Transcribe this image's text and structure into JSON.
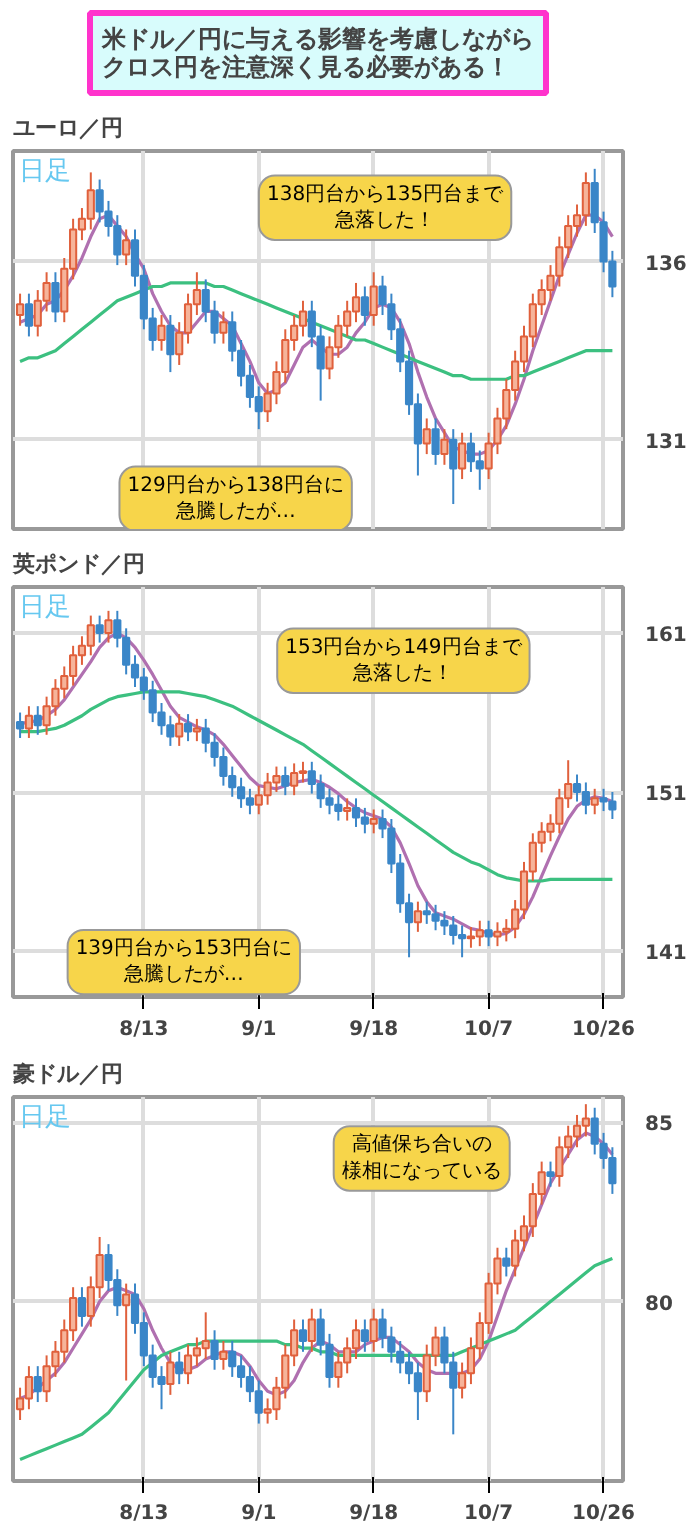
{
  "chart_data": [
    {
      "type": "candlestick",
      "title": "米ドル／円に与える影響を考慮しながらクロス円を注意深く見る必要がある！",
      "subtitle": "ユーロ／円",
      "categories": [
        null,
        null,
        null,
        null,
        null,
        null,
        null,
        null,
        null,
        null,
        null,
        null,
        null,
        null,
        null,
        null,
        null,
        null,
        null,
        null,
        null,
        null,
        null,
        null,
        null,
        null,
        null,
        null,
        null,
        null,
        null,
        null,
        null,
        null,
        null,
        null,
        null,
        null,
        null,
        null,
        null,
        null,
        null,
        null,
        null,
        null,
        null,
        null,
        null,
        null,
        null,
        null,
        null,
        null,
        null,
        null,
        null,
        null,
        null,
        null,
        null,
        null,
        null,
        null,
        null,
        null,
        null,
        null
      ],
      "ohlc": [
        [
          134.5,
          135.1,
          134.2,
          134.8
        ],
        [
          134.8,
          135.1,
          133.9,
          134.2
        ],
        [
          134.2,
          135.2,
          133.9,
          134.9
        ],
        [
          134.9,
          135.7,
          134.6,
          135.4
        ],
        [
          135.4,
          135.7,
          134.3,
          134.6
        ],
        [
          134.6,
          136.1,
          134.3,
          135.8
        ],
        [
          135.8,
          137.2,
          135.5,
          136.9
        ],
        [
          136.9,
          137.5,
          136.6,
          137.2
        ],
        [
          137.2,
          138.5,
          136.9,
          138.0
        ],
        [
          138.0,
          138.3,
          137.1,
          137.4
        ],
        [
          137.4,
          137.7,
          136.7,
          137.0
        ],
        [
          137.0,
          137.3,
          135.9,
          136.2
        ],
        [
          136.2,
          136.9,
          135.9,
          136.6
        ],
        [
          136.6,
          136.9,
          135.3,
          135.6
        ],
        [
          135.6,
          135.9,
          134.1,
          134.4
        ],
        [
          134.4,
          134.7,
          133.5,
          133.8
        ],
        [
          133.8,
          134.5,
          133.5,
          134.2
        ],
        [
          134.2,
          134.5,
          132.9,
          133.4
        ],
        [
          133.4,
          134.3,
          133.1,
          134.0
        ],
        [
          134.0,
          135.1,
          133.7,
          134.8
        ],
        [
          134.8,
          135.7,
          134.5,
          135.2
        ],
        [
          135.2,
          135.5,
          134.3,
          134.6
        ],
        [
          134.6,
          134.9,
          133.7,
          134.0
        ],
        [
          134.0,
          134.6,
          133.7,
          134.3
        ],
        [
          134.3,
          134.6,
          133.2,
          133.5
        ],
        [
          133.5,
          133.8,
          132.5,
          132.8
        ],
        [
          132.8,
          133.1,
          131.9,
          132.2
        ],
        [
          132.2,
          132.5,
          131.3,
          131.8
        ],
        [
          131.8,
          132.6,
          131.5,
          132.3
        ],
        [
          132.3,
          133.2,
          132.0,
          132.9
        ],
        [
          132.9,
          134.1,
          132.6,
          133.8
        ],
        [
          133.8,
          134.5,
          133.5,
          134.2
        ],
        [
          134.2,
          134.9,
          133.9,
          134.6
        ],
        [
          134.6,
          134.9,
          133.6,
          133.9
        ],
        [
          133.9,
          134.2,
          132.1,
          133.0
        ],
        [
          133.0,
          133.9,
          132.7,
          133.6
        ],
        [
          133.6,
          134.5,
          133.3,
          134.2
        ],
        [
          134.2,
          134.9,
          133.9,
          134.6
        ],
        [
          134.6,
          135.4,
          134.3,
          135.0
        ],
        [
          135.0,
          135.3,
          134.2,
          134.5
        ],
        [
          134.5,
          135.7,
          134.2,
          135.3
        ],
        [
          135.3,
          135.6,
          134.5,
          134.8
        ],
        [
          134.8,
          135.1,
          133.8,
          134.1
        ],
        [
          134.1,
          134.4,
          132.9,
          133.2
        ],
        [
          133.2,
          133.5,
          131.7,
          132.0
        ],
        [
          132.0,
          132.3,
          130.0,
          130.9
        ],
        [
          130.9,
          131.6,
          130.6,
          131.3
        ],
        [
          131.3,
          131.6,
          130.3,
          130.6
        ],
        [
          130.6,
          131.3,
          130.3,
          131.0
        ],
        [
          131.0,
          131.3,
          129.2,
          130.2
        ],
        [
          130.2,
          131.2,
          129.9,
          130.9
        ],
        [
          130.9,
          131.2,
          130.1,
          130.4
        ],
        [
          130.4,
          130.7,
          129.6,
          130.2
        ],
        [
          130.2,
          131.2,
          129.9,
          130.9
        ],
        [
          130.9,
          131.9,
          130.6,
          131.6
        ],
        [
          131.6,
          132.7,
          131.3,
          132.4
        ],
        [
          132.4,
          133.5,
          132.1,
          133.2
        ],
        [
          133.2,
          134.2,
          132.9,
          133.9
        ],
        [
          133.9,
          135.1,
          133.6,
          134.8
        ],
        [
          134.8,
          135.5,
          134.5,
          135.2
        ],
        [
          135.2,
          135.9,
          134.9,
          135.6
        ],
        [
          135.6,
          136.7,
          135.3,
          136.4
        ],
        [
          136.4,
          137.3,
          136.1,
          137.0
        ],
        [
          137.0,
          137.6,
          136.7,
          137.3
        ],
        [
          137.3,
          138.5,
          137.0,
          138.2
        ],
        [
          138.2,
          138.6,
          136.8,
          137.1
        ],
        [
          137.1,
          137.4,
          135.7,
          136.0
        ],
        [
          136.0,
          136.3,
          135.0,
          135.3
        ]
      ],
      "series": [
        {
          "type": "line",
          "color": "#b070b0",
          "values": [
            134.3,
            134.4,
            134.5,
            134.8,
            134.9,
            135.2,
            135.6,
            136.1,
            136.7,
            137.2,
            137.3,
            137.0,
            136.7,
            136.2,
            135.8,
            135.1,
            134.6,
            134.2,
            134.0,
            134.0,
            134.3,
            134.6,
            134.6,
            134.4,
            134.2,
            133.7,
            133.2,
            132.6,
            132.3,
            132.4,
            132.6,
            133.1,
            133.6,
            133.8,
            133.6,
            133.4,
            133.4,
            133.6,
            134.0,
            134.3,
            134.7,
            134.8,
            134.7,
            134.3,
            133.7,
            132.9,
            132.2,
            131.6,
            131.2,
            130.8,
            130.7,
            130.6,
            130.6,
            130.7,
            131.0,
            131.4,
            132.0,
            132.7,
            133.5,
            134.2,
            134.9,
            135.6,
            136.2,
            136.8,
            137.3,
            137.3,
            137.1,
            136.7
          ]
        },
        {
          "type": "line",
          "color": "#3cc080",
          "values": [
            133.2,
            133.3,
            133.3,
            133.4,
            133.5,
            133.7,
            133.9,
            134.1,
            134.3,
            134.5,
            134.7,
            134.9,
            135.0,
            135.1,
            135.2,
            135.3,
            135.3,
            135.4,
            135.4,
            135.4,
            135.4,
            135.4,
            135.3,
            135.3,
            135.2,
            135.1,
            135.0,
            134.9,
            134.8,
            134.7,
            134.6,
            134.5,
            134.4,
            134.3,
            134.2,
            134.1,
            134.0,
            133.9,
            133.8,
            133.8,
            133.7,
            133.6,
            133.5,
            133.4,
            133.3,
            133.2,
            133.1,
            133.0,
            132.9,
            132.8,
            132.8,
            132.7,
            132.7,
            132.7,
            132.7,
            132.7,
            132.8,
            132.8,
            132.9,
            133.0,
            133.1,
            133.2,
            133.3,
            133.4,
            133.5,
            133.5,
            133.5,
            133.5
          ]
        }
      ],
      "ylim": [
        128.5,
        139.1
      ],
      "yticks": [
        131,
        136
      ],
      "grid": true,
      "tick_labels": "y",
      "annotations": [
        "日足",
        "138円台から135円台まで急落した！",
        "129円台から138円台に急騰したが…"
      ]
    },
    {
      "type": "candlestick",
      "title": "英ポンド／円",
      "categories": [
        null,
        null,
        null,
        null,
        null,
        null,
        null,
        null,
        null,
        null,
        null,
        null,
        null,
        null,
        "8/13",
        null,
        null,
        null,
        null,
        null,
        null,
        null,
        null,
        null,
        null,
        null,
        null,
        "9/1",
        null,
        null,
        null,
        null,
        null,
        null,
        null,
        null,
        null,
        null,
        null,
        null,
        "9/18",
        null,
        null,
        null,
        null,
        null,
        null,
        null,
        null,
        null,
        null,
        null,
        null,
        "10/7",
        null,
        null,
        null,
        null,
        null,
        null,
        null,
        null,
        null,
        null,
        null,
        null,
        "10/26",
        null
      ],
      "ohlc": [
        [
          155.4,
          156.0,
          154.4,
          155.0
        ],
        [
          155.0,
          156.4,
          154.4,
          155.8
        ],
        [
          155.8,
          156.4,
          154.6,
          155.2
        ],
        [
          155.2,
          157.0,
          154.6,
          156.4
        ],
        [
          156.4,
          158.1,
          155.8,
          157.5
        ],
        [
          157.5,
          158.9,
          156.9,
          158.3
        ],
        [
          158.3,
          160.2,
          157.7,
          159.6
        ],
        [
          159.6,
          160.8,
          159.0,
          160.2
        ],
        [
          160.2,
          162.1,
          159.6,
          161.5
        ],
        [
          161.5,
          162.1,
          160.4,
          161.0
        ],
        [
          161.0,
          162.4,
          160.4,
          161.8
        ],
        [
          161.8,
          162.4,
          160.1,
          160.7
        ],
        [
          160.7,
          161.3,
          158.4,
          159.0
        ],
        [
          159.0,
          159.6,
          157.6,
          158.2
        ],
        [
          158.2,
          158.8,
          156.8,
          157.4
        ],
        [
          157.4,
          158.0,
          155.4,
          156.0
        ],
        [
          156.0,
          156.6,
          154.6,
          155.2
        ],
        [
          155.2,
          155.8,
          153.9,
          154.5
        ],
        [
          154.5,
          155.9,
          153.9,
          155.3
        ],
        [
          155.3,
          155.9,
          154.2,
          154.8
        ],
        [
          154.8,
          155.6,
          154.2,
          155.0
        ],
        [
          155.0,
          155.6,
          153.5,
          154.1
        ],
        [
          154.1,
          154.7,
          152.6,
          153.2
        ],
        [
          153.2,
          153.8,
          151.4,
          152.0
        ],
        [
          152.0,
          152.6,
          150.7,
          151.3
        ],
        [
          151.3,
          151.9,
          150.0,
          150.6
        ],
        [
          150.6,
          151.2,
          149.6,
          150.2
        ],
        [
          150.2,
          151.4,
          149.6,
          150.8
        ],
        [
          150.8,
          152.2,
          150.2,
          151.6
        ],
        [
          151.6,
          152.6,
          151.0,
          152.0
        ],
        [
          152.0,
          152.6,
          150.8,
          151.4
        ],
        [
          151.4,
          152.8,
          150.8,
          152.2
        ],
        [
          152.2,
          152.9,
          151.6,
          152.3
        ],
        [
          152.3,
          152.9,
          150.9,
          151.5
        ],
        [
          151.5,
          152.1,
          150.0,
          150.6
        ],
        [
          150.6,
          151.2,
          149.6,
          150.2
        ],
        [
          150.2,
          150.8,
          149.2,
          149.8
        ],
        [
          149.8,
          150.6,
          149.2,
          150.0
        ],
        [
          150.0,
          150.6,
          148.8,
          149.4
        ],
        [
          149.4,
          150.0,
          148.4,
          149.0
        ],
        [
          149.0,
          149.9,
          148.4,
          149.3
        ],
        [
          149.3,
          149.9,
          148.1,
          148.7
        ],
        [
          148.7,
          149.3,
          145.9,
          146.5
        ],
        [
          146.5,
          147.1,
          143.4,
          144.0
        ],
        [
          144.0,
          144.6,
          140.6,
          142.8
        ],
        [
          142.8,
          144.1,
          142.2,
          143.5
        ],
        [
          143.5,
          144.1,
          142.7,
          143.3
        ],
        [
          143.3,
          143.9,
          142.3,
          142.9
        ],
        [
          142.9,
          143.5,
          142.0,
          142.6
        ],
        [
          142.6,
          143.2,
          141.4,
          142.0
        ],
        [
          142.0,
          142.6,
          140.6,
          141.8
        ],
        [
          141.8,
          142.5,
          141.2,
          141.9
        ],
        [
          141.9,
          142.9,
          141.3,
          142.3
        ],
        [
          142.3,
          142.9,
          141.3,
          141.9
        ],
        [
          141.9,
          142.8,
          141.3,
          142.2
        ],
        [
          142.2,
          143.0,
          141.6,
          142.4
        ],
        [
          142.4,
          144.2,
          141.8,
          143.6
        ],
        [
          143.6,
          146.6,
          143.0,
          146.0
        ],
        [
          146.0,
          148.4,
          145.4,
          147.8
        ],
        [
          147.8,
          149.1,
          147.2,
          148.5
        ],
        [
          148.5,
          149.6,
          147.9,
          149.0
        ],
        [
          149.0,
          151.2,
          148.4,
          150.6
        ],
        [
          150.6,
          153.0,
          150.0,
          151.5
        ],
        [
          151.5,
          152.1,
          150.4,
          151.0
        ],
        [
          151.0,
          151.6,
          149.6,
          150.2
        ],
        [
          150.2,
          151.2,
          149.6,
          150.6
        ],
        [
          150.6,
          151.2,
          149.8,
          150.4
        ],
        [
          150.4,
          151.0,
          149.3,
          149.9
        ]
      ],
      "series": [
        {
          "type": "line",
          "color": "#b070b0",
          "values": [
            155.3,
            155.4,
            155.5,
            155.8,
            156.2,
            156.8,
            157.6,
            158.4,
            159.2,
            160.1,
            160.7,
            161.0,
            160.7,
            160.1,
            159.3,
            158.4,
            157.4,
            156.4,
            155.7,
            155.4,
            155.1,
            154.9,
            154.6,
            154.0,
            153.3,
            152.6,
            151.9,
            151.4,
            151.3,
            151.2,
            151.4,
            151.6,
            151.7,
            151.8,
            151.6,
            151.3,
            150.9,
            150.4,
            150.0,
            149.7,
            149.5,
            149.3,
            148.8,
            147.8,
            146.5,
            145.1,
            144.1,
            143.4,
            143.2,
            143.0,
            142.7,
            142.4,
            142.3,
            142.1,
            142.0,
            142.1,
            142.5,
            143.3,
            144.4,
            145.7,
            147.0,
            148.2,
            149.3,
            150.1,
            150.5,
            150.7,
            150.6,
            150.4
          ]
        },
        {
          "type": "line",
          "color": "#3cc080",
          "values": [
            154.8,
            154.8,
            154.8,
            154.9,
            155.0,
            155.2,
            155.5,
            155.8,
            156.2,
            156.5,
            156.8,
            157.0,
            157.1,
            157.2,
            157.3,
            157.3,
            157.3,
            157.3,
            157.3,
            157.2,
            157.1,
            157.0,
            156.8,
            156.6,
            156.4,
            156.1,
            155.8,
            155.5,
            155.2,
            154.9,
            154.6,
            154.3,
            154.0,
            153.6,
            153.2,
            152.8,
            152.4,
            152.0,
            151.6,
            151.2,
            150.8,
            150.4,
            150.0,
            149.6,
            149.2,
            148.8,
            148.4,
            148.0,
            147.6,
            147.2,
            146.9,
            146.6,
            146.4,
            146.1,
            145.8,
            145.6,
            145.5,
            145.4,
            145.4,
            145.4,
            145.5,
            145.5,
            145.5,
            145.5,
            145.5,
            145.5,
            145.5,
            145.5
          ]
        }
      ],
      "ylim": [
        138.1,
        163.9
      ],
      "yticks": [
        141,
        151,
        161
      ],
      "grid": true,
      "annotations": [
        "日足",
        "153円台から149円台まで急落した！",
        "139円台から153円台に急騰したが…"
      ]
    },
    {
      "type": "candlestick",
      "title": "豪ドル／円",
      "categories": [
        null,
        null,
        null,
        null,
        null,
        null,
        null,
        null,
        null,
        null,
        null,
        null,
        null,
        null,
        "8/13",
        null,
        null,
        null,
        null,
        null,
        null,
        null,
        null,
        null,
        null,
        null,
        null,
        "9/1",
        null,
        null,
        null,
        null,
        null,
        null,
        null,
        null,
        null,
        null,
        null,
        null,
        "9/18",
        null,
        null,
        null,
        null,
        null,
        null,
        null,
        null,
        null,
        null,
        null,
        null,
        "10/7",
        null,
        null,
        null,
        null,
        null,
        null,
        null,
        null,
        null,
        null,
        null,
        null,
        "10/26",
        null
      ],
      "ohlc": [
        [
          77.0,
          77.6,
          76.7,
          77.3
        ],
        [
          77.3,
          78.2,
          77.0,
          77.9
        ],
        [
          77.9,
          78.2,
          77.2,
          77.5
        ],
        [
          77.5,
          78.5,
          77.2,
          78.2
        ],
        [
          78.2,
          78.9,
          77.9,
          78.6
        ],
        [
          78.6,
          79.5,
          78.3,
          79.2
        ],
        [
          79.2,
          80.4,
          78.9,
          80.1
        ],
        [
          80.1,
          80.4,
          79.3,
          79.6
        ],
        [
          79.6,
          80.7,
          79.3,
          80.4
        ],
        [
          80.4,
          81.8,
          80.1,
          81.3
        ],
        [
          81.3,
          81.6,
          80.3,
          80.6
        ],
        [
          80.6,
          80.9,
          79.6,
          79.9
        ],
        [
          79.9,
          80.5,
          77.8,
          80.2
        ],
        [
          80.2,
          80.5,
          79.1,
          79.4
        ],
        [
          79.4,
          79.7,
          78.2,
          78.5
        ],
        [
          78.5,
          78.8,
          77.6,
          77.9
        ],
        [
          77.9,
          78.2,
          77.0,
          77.7
        ],
        [
          77.7,
          78.6,
          77.4,
          78.3
        ],
        [
          78.3,
          78.6,
          77.7,
          78.0
        ],
        [
          78.0,
          78.8,
          77.7,
          78.5
        ],
        [
          78.5,
          79.0,
          78.2,
          78.7
        ],
        [
          78.7,
          79.7,
          78.4,
          78.9
        ],
        [
          78.9,
          79.2,
          78.1,
          78.4
        ],
        [
          78.4,
          78.9,
          78.1,
          78.6
        ],
        [
          78.6,
          78.9,
          77.9,
          78.2
        ],
        [
          78.2,
          78.5,
          77.6,
          77.9
        ],
        [
          77.9,
          78.2,
          77.2,
          77.5
        ],
        [
          77.5,
          77.8,
          76.6,
          76.9
        ],
        [
          76.9,
          77.3,
          76.6,
          77.0
        ],
        [
          77.0,
          77.9,
          76.7,
          77.6
        ],
        [
          77.6,
          78.8,
          77.3,
          78.5
        ],
        [
          78.5,
          79.5,
          78.2,
          79.2
        ],
        [
          79.2,
          79.5,
          78.6,
          78.9
        ],
        [
          78.9,
          79.8,
          78.6,
          79.5
        ],
        [
          79.5,
          79.8,
          78.5,
          78.8
        ],
        [
          78.8,
          79.1,
          77.6,
          77.9
        ],
        [
          77.9,
          78.6,
          77.6,
          78.3
        ],
        [
          78.3,
          79.0,
          78.0,
          78.7
        ],
        [
          78.7,
          79.5,
          78.4,
          79.2
        ],
        [
          79.2,
          79.5,
          78.6,
          78.9
        ],
        [
          78.9,
          79.8,
          78.6,
          79.5
        ],
        [
          79.5,
          79.8,
          78.7,
          79.0
        ],
        [
          79.0,
          79.3,
          78.3,
          78.6
        ],
        [
          78.6,
          78.9,
          78.0,
          78.3
        ],
        [
          78.3,
          78.6,
          77.7,
          78.0
        ],
        [
          78.0,
          78.3,
          76.7,
          77.5
        ],
        [
          77.5,
          78.8,
          77.2,
          78.5
        ],
        [
          78.5,
          79.3,
          78.2,
          79.0
        ],
        [
          79.0,
          79.3,
          78.0,
          78.3
        ],
        [
          78.3,
          78.6,
          76.3,
          77.6
        ],
        [
          77.6,
          78.3,
          77.3,
          78.0
        ],
        [
          78.0,
          79.0,
          77.7,
          78.7
        ],
        [
          78.7,
          79.7,
          78.4,
          79.4
        ],
        [
          79.4,
          80.8,
          79.1,
          80.5
        ],
        [
          80.5,
          81.5,
          80.2,
          81.2
        ],
        [
          81.2,
          81.5,
          80.7,
          81.0
        ],
        [
          81.0,
          82.0,
          80.7,
          81.7
        ],
        [
          81.7,
          82.4,
          81.4,
          82.1
        ],
        [
          82.1,
          83.3,
          81.8,
          83.0
        ],
        [
          83.0,
          83.9,
          82.7,
          83.6
        ],
        [
          83.6,
          83.9,
          83.2,
          83.5
        ],
        [
          83.5,
          84.6,
          83.2,
          84.3
        ],
        [
          84.3,
          84.9,
          84.0,
          84.6
        ],
        [
          84.6,
          85.2,
          84.3,
          84.9
        ],
        [
          84.9,
          85.5,
          84.6,
          85.1
        ],
        [
          85.1,
          85.4,
          84.1,
          84.4
        ],
        [
          84.4,
          84.7,
          83.7,
          84.0
        ],
        [
          84.0,
          84.3,
          83.0,
          83.3
        ]
      ],
      "series": [
        {
          "type": "line",
          "color": "#b070b0",
          "values": [
            77.3,
            77.4,
            77.6,
            77.8,
            78.0,
            78.3,
            78.7,
            79.1,
            79.5,
            80.0,
            80.3,
            80.4,
            80.3,
            80.2,
            79.8,
            79.2,
            78.7,
            78.3,
            78.1,
            78.1,
            78.2,
            78.4,
            78.5,
            78.6,
            78.6,
            78.5,
            78.2,
            77.8,
            77.5,
            77.4,
            77.5,
            77.8,
            78.3,
            78.7,
            78.9,
            78.8,
            78.6,
            78.6,
            78.6,
            78.8,
            78.9,
            79.0,
            79.0,
            78.8,
            78.6,
            78.3,
            78.1,
            78.0,
            78.0,
            78.0,
            78.0,
            78.1,
            78.4,
            78.9,
            79.6,
            80.3,
            80.9,
            81.5,
            82.1,
            82.7,
            83.3,
            83.7,
            84.1,
            84.5,
            84.7,
            84.6,
            84.4,
            84.1
          ]
        },
        {
          "type": "line",
          "color": "#3cc080",
          "values": [
            75.6,
            75.7,
            75.8,
            75.9,
            76.0,
            76.1,
            76.2,
            76.3,
            76.5,
            76.7,
            76.9,
            77.2,
            77.5,
            77.8,
            78.1,
            78.3,
            78.5,
            78.6,
            78.7,
            78.8,
            78.8,
            78.9,
            78.9,
            78.9,
            78.9,
            78.9,
            78.9,
            78.9,
            78.9,
            78.9,
            78.8,
            78.8,
            78.7,
            78.7,
            78.6,
            78.6,
            78.5,
            78.5,
            78.5,
            78.5,
            78.5,
            78.5,
            78.5,
            78.5,
            78.5,
            78.5,
            78.5,
            78.5,
            78.5,
            78.5,
            78.6,
            78.7,
            78.8,
            78.9,
            79.0,
            79.1,
            79.2,
            79.4,
            79.6,
            79.8,
            80.0,
            80.2,
            80.4,
            80.6,
            80.8,
            81.0,
            81.1,
            81.2
          ]
        }
      ],
      "ylim": [
        75.0,
        85.7
      ],
      "yticks": [
        80,
        85
      ],
      "grid": true,
      "annotations": [
        "日足",
        "高値保ち合いの様相になっている"
      ]
    }
  ]
}
